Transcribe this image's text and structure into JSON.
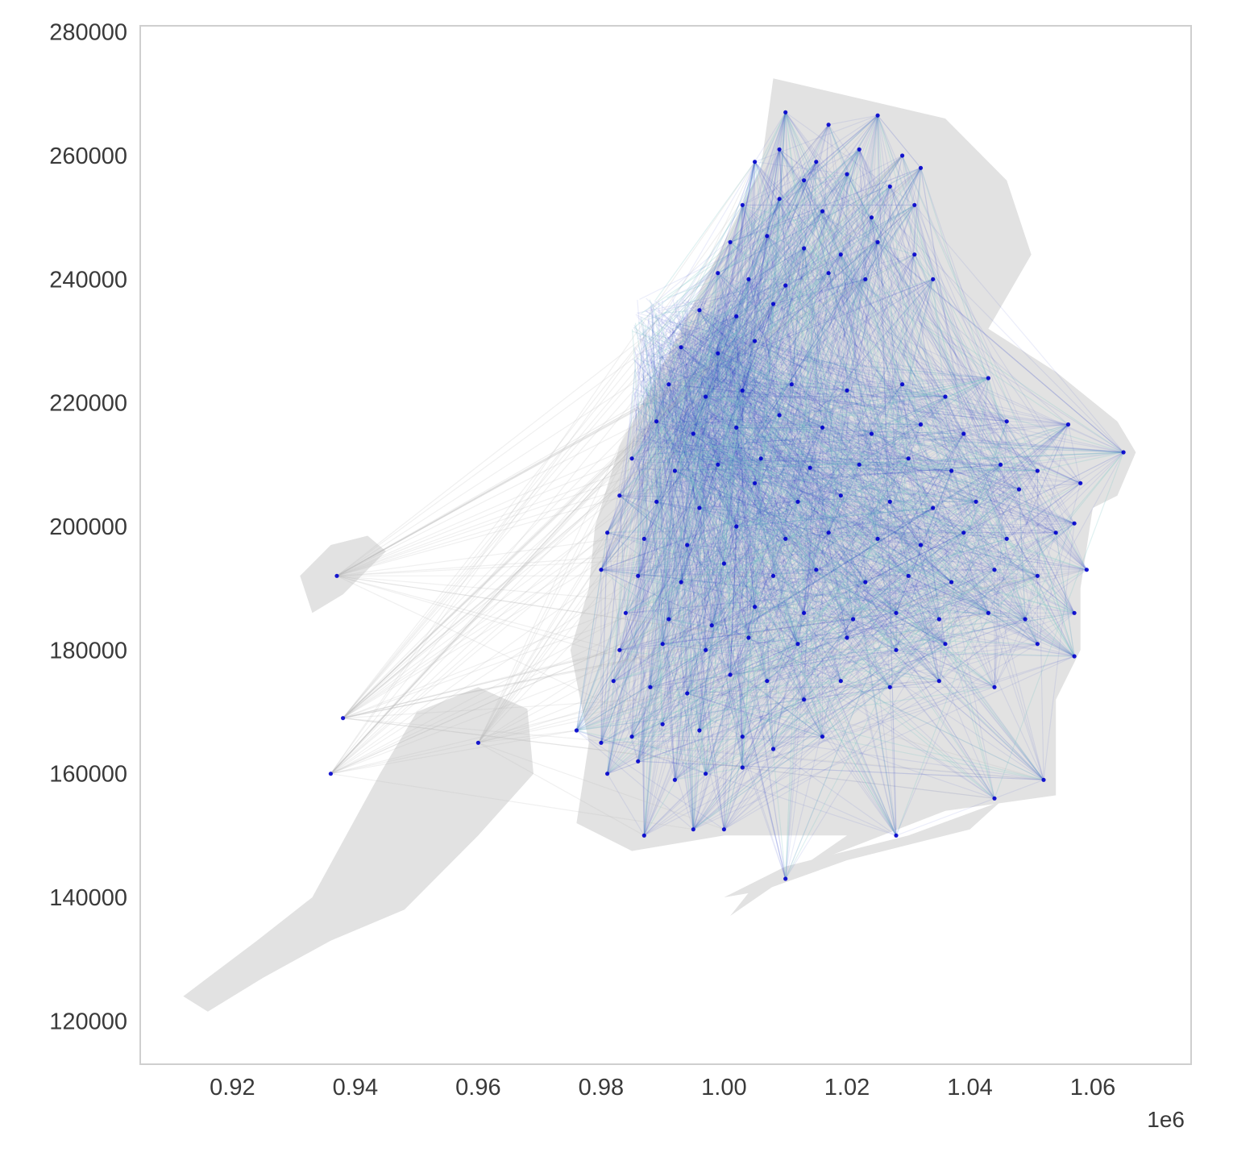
{
  "chart_data": {
    "type": "scatter",
    "title": "",
    "xlabel": "",
    "ylabel": "",
    "x_offset_label": "1e6",
    "xlim": [
      0.905,
      1.076
    ],
    "ylim": [
      113000,
      281000
    ],
    "xticks": [
      0.92,
      0.94,
      0.96,
      0.98,
      1.0,
      1.02,
      1.04,
      1.06
    ],
    "xtick_labels": [
      "0.92",
      "0.94",
      "0.96",
      "0.98",
      "1.00",
      "1.02",
      "1.04",
      "1.06"
    ],
    "yticks": [
      120000,
      140000,
      160000,
      180000,
      200000,
      220000,
      240000,
      260000,
      280000
    ],
    "ytick_labels": [
      "120000",
      "140000",
      "160000",
      "180000",
      "200000",
      "220000",
      "240000",
      "260000",
      "280000"
    ],
    "grid": false,
    "colors": {
      "basemap": "#e2e2e2",
      "edges": "#2233cc",
      "edges_light": "#7fc6c6",
      "nodes": "#0000cc",
      "spine": "#cfcfcf"
    },
    "series": [
      {
        "values": [
          [
            1.01,
            267000
          ],
          [
            1.017,
            265000
          ],
          [
            1.025,
            266500
          ],
          [
            1.009,
            261000
          ],
          [
            1.015,
            259000
          ],
          [
            1.022,
            261000
          ],
          [
            1.029,
            260000
          ],
          [
            1.005,
            259000
          ],
          [
            1.013,
            256000
          ],
          [
            1.02,
            257000
          ],
          [
            1.027,
            255000
          ],
          [
            1.032,
            258000
          ],
          [
            1.003,
            252000
          ],
          [
            1.009,
            253000
          ],
          [
            1.016,
            251000
          ],
          [
            1.024,
            250000
          ],
          [
            1.031,
            252000
          ],
          [
            1.001,
            246000
          ],
          [
            1.007,
            247000
          ],
          [
            1.013,
            245000
          ],
          [
            1.019,
            244000
          ],
          [
            1.025,
            246000
          ],
          [
            1.031,
            244000
          ],
          [
            0.999,
            241000
          ],
          [
            1.004,
            240000
          ],
          [
            1.01,
            239000
          ],
          [
            1.017,
            241000
          ],
          [
            1.023,
            240000
          ],
          [
            1.034,
            240000
          ],
          [
            0.996,
            235000
          ],
          [
            1.002,
            234000
          ],
          [
            1.008,
            236000
          ],
          [
            0.993,
            229000
          ],
          [
            0.999,
            228000
          ],
          [
            1.005,
            230000
          ],
          [
            0.991,
            223000
          ],
          [
            0.997,
            221000
          ],
          [
            1.003,
            222000
          ],
          [
            1.011,
            223000
          ],
          [
            1.02,
            222000
          ],
          [
            1.029,
            223000
          ],
          [
            1.036,
            221000
          ],
          [
            1.043,
            224000
          ],
          [
            0.989,
            217000
          ],
          [
            0.995,
            215000
          ],
          [
            1.002,
            216000
          ],
          [
            1.009,
            218000
          ],
          [
            1.016,
            216000
          ],
          [
            1.024,
            215000
          ],
          [
            1.032,
            216500
          ],
          [
            1.039,
            215000
          ],
          [
            1.046,
            217000
          ],
          [
            1.056,
            216500
          ],
          [
            0.985,
            211000
          ],
          [
            0.992,
            209000
          ],
          [
            0.999,
            210000
          ],
          [
            1.006,
            211000
          ],
          [
            1.014,
            209500
          ],
          [
            1.022,
            210000
          ],
          [
            1.03,
            211000
          ],
          [
            1.037,
            209000
          ],
          [
            1.045,
            210000
          ],
          [
            1.051,
            209000
          ],
          [
            1.065,
            212000
          ],
          [
            0.983,
            205000
          ],
          [
            0.989,
            204000
          ],
          [
            0.996,
            203000
          ],
          [
            1.005,
            207000
          ],
          [
            1.012,
            204000
          ],
          [
            1.019,
            205000
          ],
          [
            1.027,
            204000
          ],
          [
            1.034,
            203000
          ],
          [
            1.041,
            204000
          ],
          [
            1.048,
            206000
          ],
          [
            1.058,
            207000
          ],
          [
            0.981,
            199000
          ],
          [
            0.987,
            198000
          ],
          [
            0.994,
            197000
          ],
          [
            1.002,
            200000
          ],
          [
            1.01,
            198000
          ],
          [
            1.017,
            199000
          ],
          [
            1.025,
            198000
          ],
          [
            1.032,
            197000
          ],
          [
            1.039,
            199000
          ],
          [
            1.046,
            198000
          ],
          [
            1.054,
            199000
          ],
          [
            1.057,
            200500
          ],
          [
            0.98,
            193000
          ],
          [
            0.986,
            192000
          ],
          [
            0.993,
            191000
          ],
          [
            1.0,
            194000
          ],
          [
            1.008,
            192000
          ],
          [
            1.015,
            193000
          ],
          [
            1.023,
            191000
          ],
          [
            1.03,
            192000
          ],
          [
            1.037,
            191000
          ],
          [
            1.044,
            193000
          ],
          [
            1.051,
            192000
          ],
          [
            1.059,
            193000
          ],
          [
            0.984,
            186000
          ],
          [
            0.991,
            185000
          ],
          [
            0.998,
            184000
          ],
          [
            1.005,
            187000
          ],
          [
            1.013,
            186000
          ],
          [
            1.021,
            185000
          ],
          [
            1.028,
            186000
          ],
          [
            1.035,
            185000
          ],
          [
            1.043,
            186000
          ],
          [
            1.049,
            185000
          ],
          [
            1.057,
            186000
          ],
          [
            0.983,
            180000
          ],
          [
            0.99,
            181000
          ],
          [
            0.997,
            180000
          ],
          [
            1.004,
            182000
          ],
          [
            1.012,
            181000
          ],
          [
            1.02,
            182000
          ],
          [
            1.028,
            180000
          ],
          [
            1.036,
            181000
          ],
          [
            1.051,
            181000
          ],
          [
            1.057,
            179000
          ],
          [
            0.982,
            175000
          ],
          [
            0.988,
            174000
          ],
          [
            0.994,
            173000
          ],
          [
            1.001,
            176000
          ],
          [
            1.007,
            175000
          ],
          [
            1.013,
            172000
          ],
          [
            1.019,
            175000
          ],
          [
            1.027,
            174000
          ],
          [
            1.035,
            175000
          ],
          [
            1.044,
            174000
          ],
          [
            0.976,
            167000
          ],
          [
            0.98,
            165000
          ],
          [
            0.985,
            166000
          ],
          [
            0.99,
            168000
          ],
          [
            0.996,
            167000
          ],
          [
            1.003,
            166000
          ],
          [
            1.008,
            164000
          ],
          [
            1.016,
            166000
          ],
          [
            0.981,
            160000
          ],
          [
            0.986,
            162000
          ],
          [
            0.992,
            159000
          ],
          [
            0.997,
            160000
          ],
          [
            1.003,
            161000
          ],
          [
            0.987,
            150000
          ],
          [
            0.995,
            151000
          ],
          [
            1.0,
            151000
          ],
          [
            1.044,
            156000
          ],
          [
            1.052,
            159000
          ],
          [
            1.028,
            150000
          ],
          [
            1.01,
            143000
          ],
          [
            0.937,
            192000
          ],
          [
            0.938,
            169000
          ],
          [
            0.936,
            160000
          ],
          [
            0.96,
            165000
          ]
        ]
      }
    ],
    "edge_count": 2600
  }
}
